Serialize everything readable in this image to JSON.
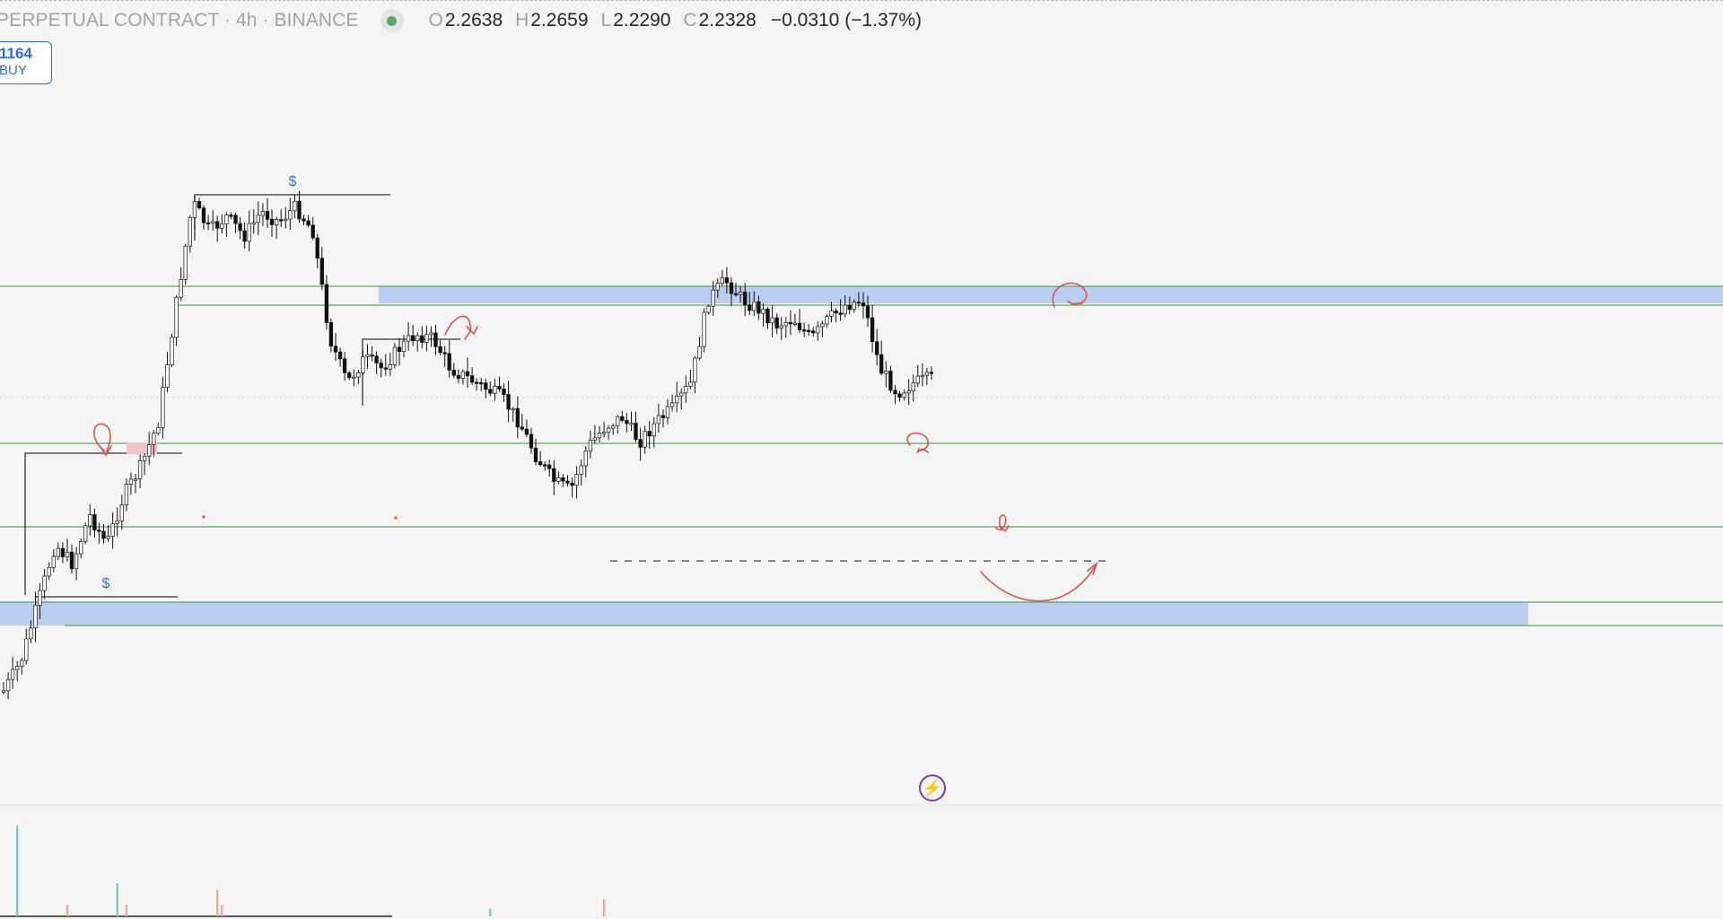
{
  "header": {
    "symbol": "PERPETUAL CONTRACT · 4h · BINANCE",
    "status_color": "#5ca86a",
    "ohlc": {
      "open_label": "O",
      "open": "2.2638",
      "high_label": "H",
      "high": "2.2659",
      "low_label": "L",
      "low": "2.2290",
      "close_label": "C",
      "close": "2.2328",
      "change": "−0.0310 (−1.37%)"
    }
  },
  "order_box": {
    "price": "1164",
    "label": "BUY"
  },
  "icons": {
    "status": "market-status-dot-icon",
    "flash": "lightning-icon"
  },
  "chart_data": {
    "type": "candlestick",
    "timeframe": "4h",
    "exchange": "BINANCE",
    "title": "PERPETUAL CONTRACT · 4h · BINANCE",
    "last_bar": {
      "open": 2.2638,
      "high": 2.2659,
      "low": 2.229,
      "close": 2.2328,
      "change": -0.031,
      "change_pct": -1.37
    },
    "y_axis": {
      "visible": false
    },
    "x_axis": {
      "visible": false
    },
    "grid": false,
    "colors": {
      "up_candle": "#ffffff",
      "down_candle": "#111111",
      "candle_outline": "#111111",
      "level_line": "#5aa95f",
      "zone": "#bccdf2",
      "annotation": "#d9534f",
      "liquidity_marker": "#3d6fd1",
      "volume_up": "#7ec7c0",
      "volume_down": "#f0a5a5"
    },
    "price_path_description_points": [
      0.0,
      0.06,
      0.18,
      0.3,
      0.26,
      0.36,
      0.3,
      0.4,
      0.46,
      0.55,
      0.78,
      1.0,
      0.94,
      0.97,
      0.93,
      0.98,
      0.96,
      0.99,
      0.94,
      0.72,
      0.63,
      0.68,
      0.66,
      0.7,
      0.73,
      0.72,
      0.66,
      0.64,
      0.62,
      0.6,
      0.55,
      0.48,
      0.43,
      0.41,
      0.5,
      0.54,
      0.56,
      0.51,
      0.55,
      0.58,
      0.63,
      0.8,
      0.84,
      0.8,
      0.78,
      0.75,
      0.76,
      0.72,
      0.76,
      0.79,
      0.8,
      0.66,
      0.61,
      0.63,
      0.64
    ],
    "liquidity_markers": [
      "$",
      "$"
    ],
    "volume": [
      {
        "index": 3,
        "value": 0.96,
        "direction": "up"
      },
      {
        "index": 14,
        "value": 0.12,
        "direction": "down"
      },
      {
        "index": 25,
        "value": 0.35,
        "direction": "up"
      },
      {
        "index": 27,
        "value": 0.12,
        "direction": "down"
      },
      {
        "index": 47,
        "value": 0.28,
        "direction": "down"
      },
      {
        "index": 48,
        "value": 0.12,
        "direction": "down"
      },
      {
        "index": 107,
        "value": 0.08,
        "direction": "up"
      },
      {
        "index": 132,
        "value": 0.18,
        "direction": "down"
      }
    ]
  }
}
